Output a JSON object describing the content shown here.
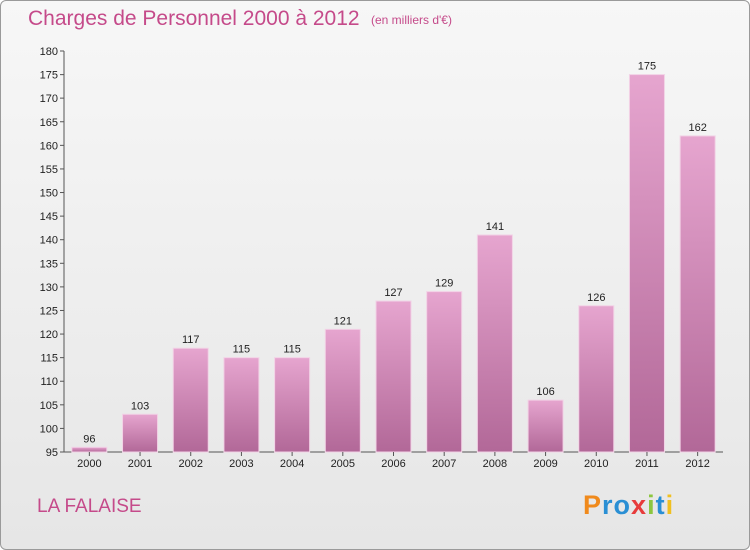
{
  "header": {
    "title": "Charges de Personnel 2000 à 2012",
    "subtitle": "(en milliers d'€)"
  },
  "footer": {
    "place": "LA FALAISE",
    "logo": "Proxiti"
  },
  "colors": {
    "bar": "#d07fb0",
    "title": "#c54a8a",
    "logo": [
      "#f08a1c",
      "#2a8fd4",
      "#2a8fd4",
      "#e73b3b",
      "#8cc63f",
      "#2a8fd4",
      "#f0c020"
    ]
  },
  "chart_data": {
    "type": "bar",
    "categories": [
      "2000",
      "2001",
      "2002",
      "2003",
      "2004",
      "2005",
      "2006",
      "2007",
      "2008",
      "2009",
      "2010",
      "2011",
      "2012"
    ],
    "values": [
      96,
      103,
      117,
      115,
      115,
      121,
      127,
      129,
      141,
      106,
      126,
      175,
      162
    ],
    "ylim": [
      95,
      180
    ],
    "yticks": [
      95,
      100,
      105,
      110,
      115,
      120,
      125,
      130,
      135,
      140,
      145,
      150,
      155,
      160,
      165,
      170,
      175,
      180
    ],
    "grid": false,
    "legend": "none"
  }
}
